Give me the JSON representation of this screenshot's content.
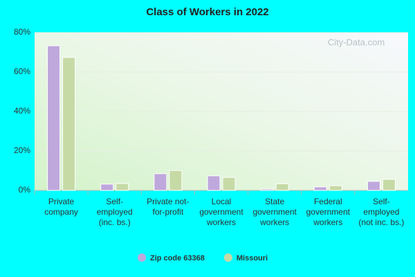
{
  "chart_data": {
    "type": "bar",
    "title": "Class of Workers in 2022",
    "watermark": "City-Data.com",
    "categories": [
      "Private company",
      "Self-employed (inc. bs.)",
      "Private not-for-profit",
      "Local government workers",
      "State government workers",
      "Federal government workers",
      "Self-employed (not inc. bs.)"
    ],
    "series": [
      {
        "name": "Zip code 63368",
        "color": "#bfa8dc",
        "values": [
          73.3,
          3.2,
          8.5,
          7.4,
          0.7,
          1.8,
          4.6
        ]
      },
      {
        "name": "Missouri",
        "color": "#c6daa6",
        "values": [
          67.4,
          3.5,
          10.1,
          6.6,
          3.4,
          2.4,
          5.6
        ]
      }
    ],
    "ylim": [
      0,
      80
    ],
    "yticks": [
      {
        "value": 0,
        "label": "0%"
      },
      {
        "value": 20,
        "label": "20%"
      },
      {
        "value": 40,
        "label": "40%"
      },
      {
        "value": 60,
        "label": "60%"
      },
      {
        "value": 80,
        "label": "80%"
      }
    ],
    "grid": true
  }
}
